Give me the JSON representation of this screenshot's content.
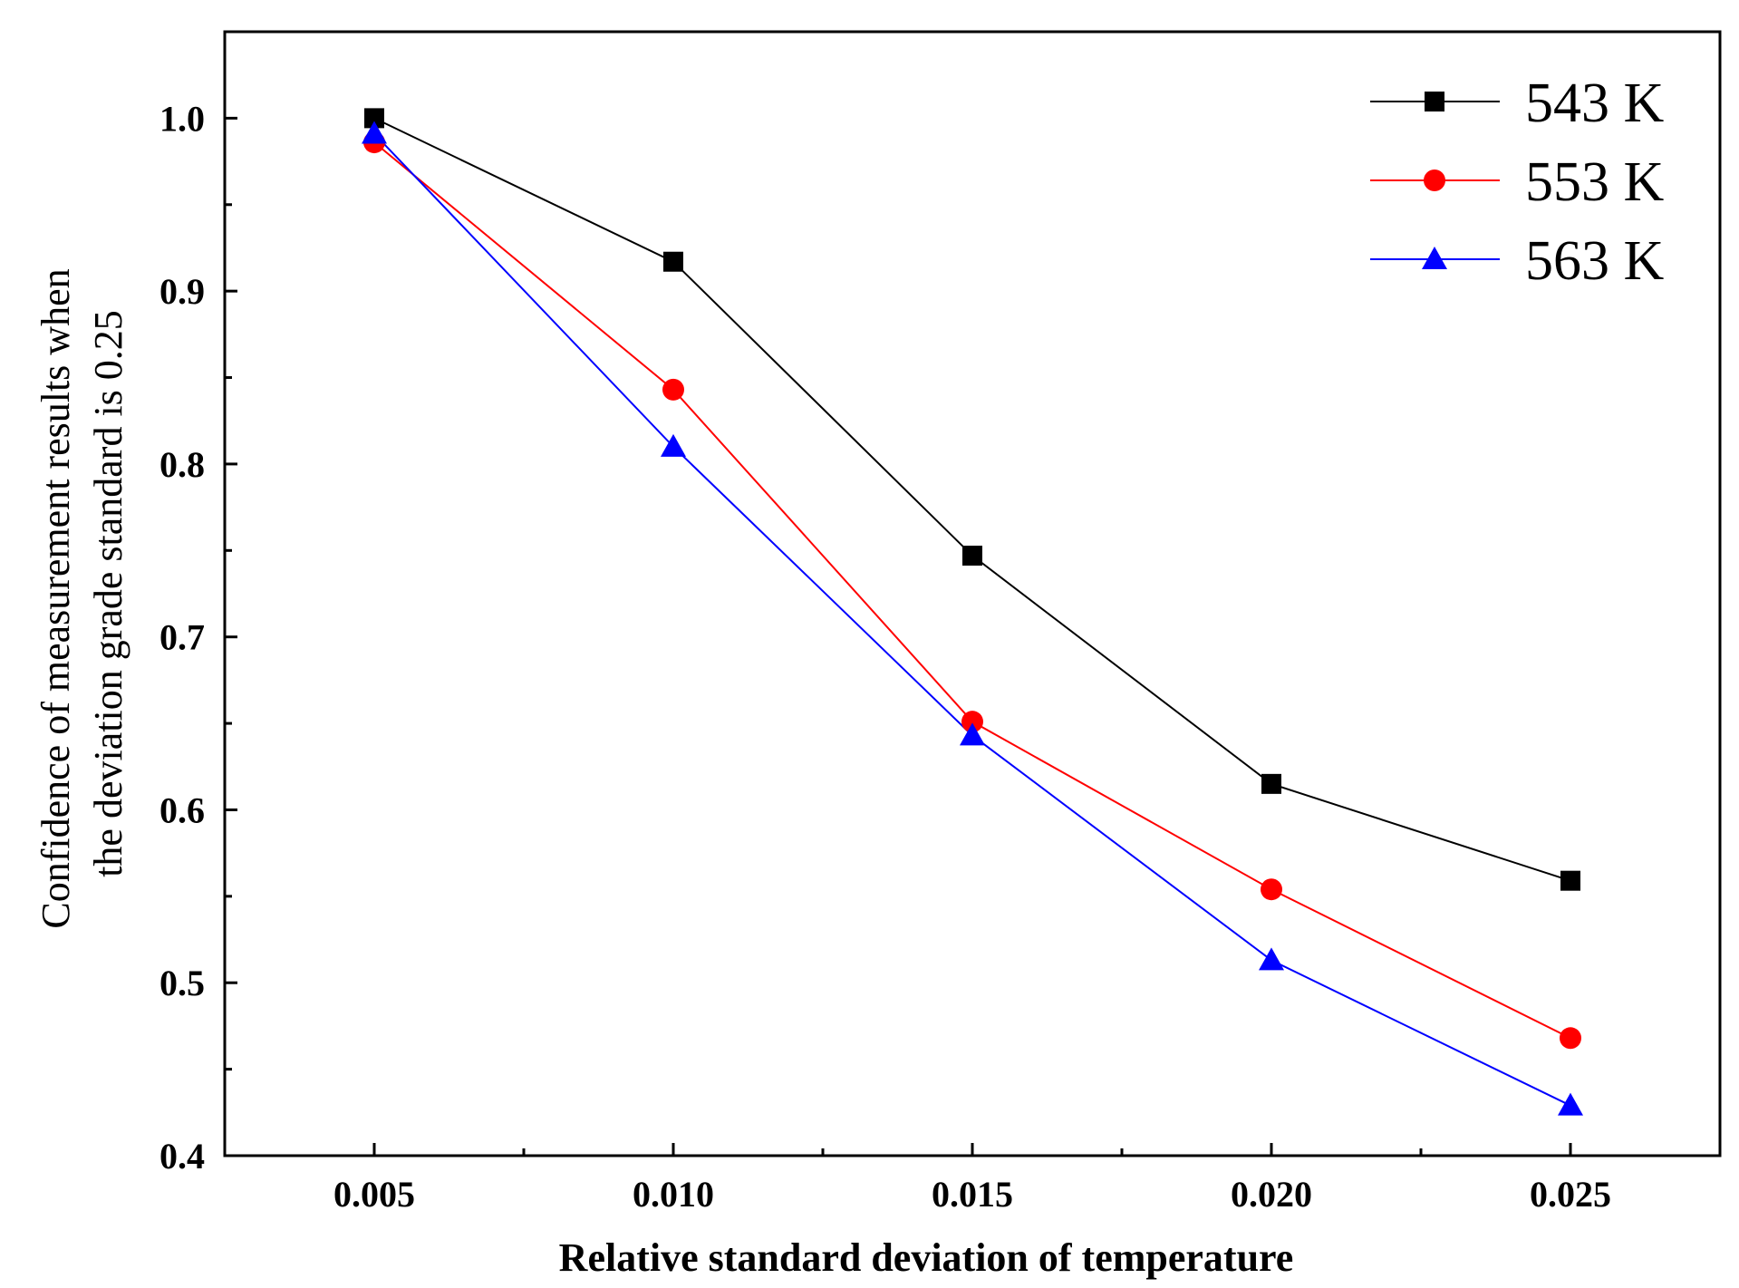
{
  "chart_data": {
    "type": "line",
    "title": "",
    "xlabel": "Relative standard deviation of temperature",
    "ylabel_lines": [
      "Confidence of measurement results when",
      "the deviation grade standard is 0.25"
    ],
    "x": [
      0.005,
      0.01,
      0.015,
      0.02,
      0.025
    ],
    "x_tick_labels": [
      "0.005",
      "0.010",
      "0.015",
      "0.020",
      "0.025"
    ],
    "y_tick_values": [
      0.4,
      0.5,
      0.6,
      0.7,
      0.8,
      0.9,
      1.0
    ],
    "y_tick_labels": [
      "0.4",
      "0.5",
      "0.6",
      "0.7",
      "0.8",
      "0.9",
      "1.0"
    ],
    "xlim": [
      0.0025,
      0.0275
    ],
    "ylim": [
      0.4,
      1.05
    ],
    "grid": false,
    "legend_position": "top-right",
    "series": [
      {
        "name": "543 K",
        "color": "#000000",
        "marker": "square",
        "values": [
          1.0,
          0.917,
          0.747,
          0.615,
          0.559
        ]
      },
      {
        "name": "553 K",
        "color": "#ff0000",
        "marker": "circle",
        "values": [
          0.986,
          0.843,
          0.651,
          0.554,
          0.468
        ]
      },
      {
        "name": "563 K",
        "color": "#0000ff",
        "marker": "triangle",
        "values": [
          0.991,
          0.81,
          0.643,
          0.513,
          0.429
        ]
      }
    ]
  }
}
